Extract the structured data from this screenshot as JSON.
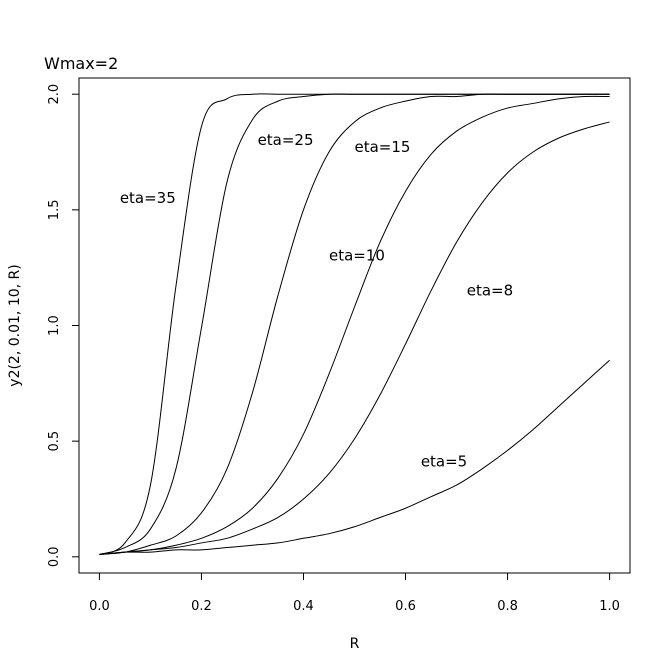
{
  "chart_data": {
    "type": "line",
    "title": "Wmax=2",
    "xlabel": "R",
    "ylabel": "y2(2, 0.01, 10, R)",
    "xlim": [
      -0.04,
      1.04
    ],
    "ylim": [
      -0.07,
      2.07
    ],
    "x_ticks": [
      {
        "value": 0.0,
        "label": "0.0"
      },
      {
        "value": 0.2,
        "label": "0.2"
      },
      {
        "value": 0.4,
        "label": "0.4"
      },
      {
        "value": 0.6,
        "label": "0.6"
      },
      {
        "value": 0.8,
        "label": "0.8"
      },
      {
        "value": 1.0,
        "label": "1.0"
      }
    ],
    "y_ticks": [
      {
        "value": 0.0,
        "label": "0.0"
      },
      {
        "value": 0.5,
        "label": "0.5"
      },
      {
        "value": 1.0,
        "label": "1.0"
      },
      {
        "value": 1.5,
        "label": "1.5"
      },
      {
        "value": 2.0,
        "label": "2.0"
      }
    ],
    "x": [
      0.0,
      0.05,
      0.1,
      0.15,
      0.2,
      0.25,
      0.3,
      0.35,
      0.4,
      0.45,
      0.5,
      0.55,
      0.6,
      0.65,
      0.7,
      0.75,
      0.8,
      0.85,
      0.9,
      0.95,
      1.0
    ],
    "series": [
      {
        "name": "eta=35",
        "label": "eta=35",
        "label_at": [
          0.04,
          1.53
        ],
        "values": [
          0.01,
          0.06,
          0.31,
          1.17,
          1.86,
          1.98,
          2.0,
          2.0,
          2.0,
          2.0,
          2.0,
          2.0,
          2.0,
          2.0,
          2.0,
          2.0,
          2.0,
          2.0,
          2.0,
          2.0,
          2.0
        ]
      },
      {
        "name": "eta=25",
        "label": "eta=25",
        "label_at": [
          0.31,
          1.78
        ],
        "values": [
          0.01,
          0.04,
          0.12,
          0.38,
          0.99,
          1.62,
          1.89,
          1.97,
          1.99,
          2.0,
          2.0,
          2.0,
          2.0,
          2.0,
          2.0,
          2.0,
          2.0,
          2.0,
          2.0,
          2.0,
          2.0
        ]
      },
      {
        "name": "eta=15",
        "label": "eta=15",
        "label_at": [
          0.5,
          1.75
        ],
        "values": [
          0.01,
          0.02,
          0.05,
          0.09,
          0.19,
          0.38,
          0.71,
          1.13,
          1.5,
          1.75,
          1.88,
          1.94,
          1.97,
          1.99,
          1.99,
          2.0,
          2.0,
          2.0,
          2.0,
          2.0,
          2.0
        ]
      },
      {
        "name": "eta=10",
        "label": "eta=10",
        "label_at": [
          0.45,
          1.28
        ],
        "values": [
          0.01,
          0.02,
          0.03,
          0.05,
          0.08,
          0.13,
          0.21,
          0.34,
          0.53,
          0.79,
          1.08,
          1.36,
          1.58,
          1.74,
          1.84,
          1.9,
          1.94,
          1.96,
          1.98,
          1.99,
          1.99
        ]
      },
      {
        "name": "eta=8",
        "label": "eta=8",
        "label_at": [
          0.72,
          1.13
        ],
        "values": [
          0.01,
          0.02,
          0.03,
          0.04,
          0.06,
          0.08,
          0.12,
          0.17,
          0.25,
          0.36,
          0.51,
          0.7,
          0.92,
          1.15,
          1.36,
          1.53,
          1.66,
          1.75,
          1.81,
          1.85,
          1.88
        ]
      },
      {
        "name": "eta=5",
        "label": "eta=5",
        "label_at": [
          0.63,
          0.39
        ],
        "values": [
          0.01,
          0.02,
          0.02,
          0.03,
          0.03,
          0.04,
          0.05,
          0.06,
          0.08,
          0.1,
          0.13,
          0.17,
          0.21,
          0.26,
          0.31,
          0.38,
          0.46,
          0.55,
          0.65,
          0.75,
          0.85
        ]
      }
    ]
  }
}
